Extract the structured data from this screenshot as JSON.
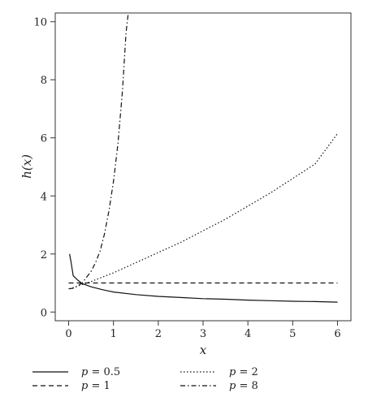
{
  "chart_data": {
    "type": "line",
    "title": "",
    "xlabel": "x",
    "ylabel": "h(x)",
    "xlim": [
      -0.3,
      6.3
    ],
    "ylim": [
      -0.3,
      10.3
    ],
    "xticks": [
      0,
      1,
      2,
      3,
      4,
      5,
      6
    ],
    "yticks": [
      0,
      2,
      4,
      6,
      8,
      10
    ],
    "x_tick_labels": [
      "0",
      "1",
      "2",
      "3",
      "4",
      "5",
      "6"
    ],
    "y_tick_labels": [
      "0",
      "2",
      "4",
      "6",
      "8",
      "10"
    ],
    "grid": false,
    "legend_position": "bottom",
    "series": [
      {
        "name": "p = 0.5",
        "var": "p",
        "value": "0.5",
        "dash": "solid",
        "points": [
          [
            0.02,
            2.0
          ],
          [
            0.05,
            1.75
          ],
          [
            0.1,
            1.25
          ],
          [
            0.2,
            1.1
          ],
          [
            0.3,
            0.98
          ],
          [
            0.5,
            0.87
          ],
          [
            0.75,
            0.77
          ],
          [
            1.0,
            0.69
          ],
          [
            1.5,
            0.6
          ],
          [
            2.0,
            0.54
          ],
          [
            2.5,
            0.5
          ],
          [
            3.0,
            0.46
          ],
          [
            3.5,
            0.44
          ],
          [
            4.0,
            0.41
          ],
          [
            4.5,
            0.39
          ],
          [
            5.0,
            0.37
          ],
          [
            5.5,
            0.36
          ],
          [
            6.0,
            0.34
          ]
        ]
      },
      {
        "name": "p = 1",
        "var": "p",
        "value": "1",
        "dash": "dashed",
        "points": [
          [
            0.0,
            1.0
          ],
          [
            6.0,
            1.0
          ]
        ]
      },
      {
        "name": "p = 2",
        "var": "p",
        "value": "2",
        "dash": "dotted",
        "points": [
          [
            0.02,
            0.8
          ],
          [
            0.25,
            0.92
          ],
          [
            0.5,
            1.05
          ],
          [
            1.0,
            1.35
          ],
          [
            1.5,
            1.7
          ],
          [
            2.0,
            2.05
          ],
          [
            2.5,
            2.4
          ],
          [
            3.0,
            2.8
          ],
          [
            3.5,
            3.2
          ],
          [
            4.0,
            3.65
          ],
          [
            4.5,
            4.1
          ],
          [
            5.0,
            4.6
          ],
          [
            5.5,
            5.1
          ],
          [
            6.0,
            6.15
          ]
        ]
      },
      {
        "name": "p = 8",
        "var": "p",
        "value": "8",
        "dash": "dashdot",
        "points": [
          [
            0.0,
            0.8
          ],
          [
            0.1,
            0.82
          ],
          [
            0.2,
            0.9
          ],
          [
            0.3,
            1.0
          ],
          [
            0.4,
            1.2
          ],
          [
            0.5,
            1.4
          ],
          [
            0.6,
            1.7
          ],
          [
            0.7,
            2.1
          ],
          [
            0.8,
            2.7
          ],
          [
            0.9,
            3.5
          ],
          [
            1.0,
            4.5
          ],
          [
            1.1,
            5.8
          ],
          [
            1.2,
            7.6
          ],
          [
            1.28,
            9.6
          ],
          [
            1.33,
            10.3
          ]
        ]
      }
    ]
  }
}
